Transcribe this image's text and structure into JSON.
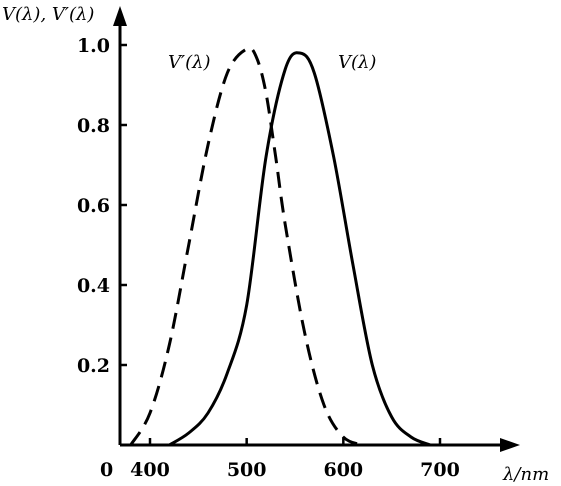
{
  "chart_data": {
    "type": "line",
    "ylabel": "V(λ), V′(λ)",
    "xlabel": "λ/nm",
    "origin_label": "0",
    "xlim": [
      300,
      700
    ],
    "ylim": [
      0,
      1.0
    ],
    "x_ticks": [
      400,
      500,
      600,
      700
    ],
    "y_ticks": [
      0.2,
      0.4,
      0.6,
      0.8,
      1.0
    ],
    "y_tick_labels": [
      "0.2",
      "0.4",
      "0.6",
      "0.8",
      "1.0"
    ],
    "x_tick_labels": [
      "400",
      "500",
      "600",
      "700"
    ],
    "series": [
      {
        "name": "V′(λ)",
        "style": "dashed",
        "x": [
          380,
          400,
          420,
          440,
          460,
          480,
          500,
          510,
          520,
          530,
          540,
          560,
          580,
          600,
          620
        ],
        "y": [
          0.0,
          0.08,
          0.25,
          0.5,
          0.75,
          0.93,
          0.99,
          0.97,
          0.88,
          0.72,
          0.55,
          0.28,
          0.1,
          0.02,
          0.0
        ]
      },
      {
        "name": "V(λ)",
        "style": "solid",
        "x": [
          420,
          440,
          460,
          480,
          500,
          520,
          540,
          555,
          570,
          590,
          610,
          630,
          650,
          670,
          690
        ],
        "y": [
          0.0,
          0.03,
          0.08,
          0.18,
          0.35,
          0.72,
          0.94,
          0.98,
          0.93,
          0.72,
          0.45,
          0.2,
          0.07,
          0.02,
          0.0
        ]
      }
    ]
  }
}
